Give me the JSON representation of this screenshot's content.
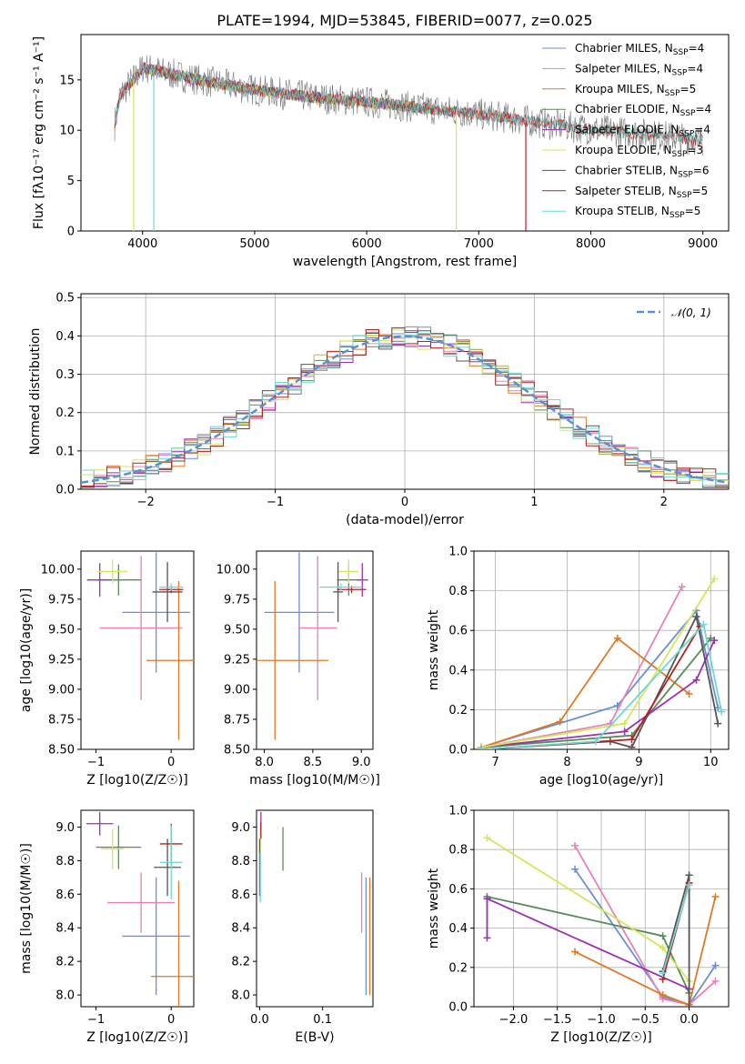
{
  "title": "PLATE=1994, MJD=53845, FIBERID=0077, z=0.025",
  "colors": {
    "Chabrier MILES": "#6a8ed8",
    "Salpeter MILES": "#e882b6",
    "Kroupa MILES": "#de7a26",
    "Chabrier ELODIE": "#5a8a5a",
    "Salpeter ELODIE": "#9a32b0",
    "Kroupa ELODIE": "#d2e85a",
    "Chabrier STELIB": "#555555",
    "Salpeter STELIB": "#b22222",
    "Kroupa STELIB": "#6cd8d0",
    "data": "#777777",
    "normal": "#5b8fd6"
  },
  "chart_data": [
    {
      "id": "spectrum",
      "type": "line",
      "xlabel": "wavelength [Angstrom, rest frame]",
      "ylabel": "Flux [fλ10⁻¹⁷ erg cm⁻² s⁻¹ A⁻¹]",
      "xlim": [
        3450,
        9230
      ],
      "ylim": [
        0,
        19.5
      ],
      "xticks": [
        4000,
        5000,
        6000,
        7000,
        8000,
        9000
      ],
      "yticks": [
        0,
        5,
        10,
        15
      ],
      "legend_position": "top-right",
      "legend": [
        {
          "name": "Chabrier MILES",
          "nssp": 4
        },
        {
          "name": "Salpeter MILES",
          "nssp": 4
        },
        {
          "name": "Kroupa MILES",
          "nssp": 5
        },
        {
          "name": "Chabrier ELODIE",
          "nssp": 4
        },
        {
          "name": "Salpeter ELODIE",
          "nssp": 4
        },
        {
          "name": "Kroupa ELODIE",
          "nssp": 3
        },
        {
          "name": "Chabrier STELIB",
          "nssp": 6
        },
        {
          "name": "Salpeter STELIB",
          "nssp": 5
        },
        {
          "name": "Kroupa STELIB",
          "nssp": 5
        }
      ],
      "continuum": {
        "x": [
          3750,
          3800,
          3900,
          4000,
          4100,
          4200,
          4500,
          5000,
          5500,
          6000,
          6500,
          7000,
          7400,
          7700,
          8000,
          8500,
          9000
        ],
        "y": [
          10.5,
          13.5,
          14.8,
          16.2,
          16.0,
          15.7,
          15.0,
          14.0,
          13.3,
          12.8,
          12.2,
          11.6,
          11.0,
          10.5,
          10.1,
          9.6,
          9.0
        ]
      },
      "model_ranges": [
        {
          "name": "Chabrier MILES",
          "x": [
            3750,
            7400
          ]
        },
        {
          "name": "Salpeter MILES",
          "x": [
            3750,
            7400
          ]
        },
        {
          "name": "Kroupa MILES",
          "x": [
            3750,
            7400
          ]
        },
        {
          "name": "Chabrier ELODIE",
          "x": [
            3900,
            6800
          ]
        },
        {
          "name": "Salpeter ELODIE",
          "x": [
            3900,
            6800
          ]
        },
        {
          "name": "Kroupa ELODIE",
          "x": [
            3900,
            6800
          ]
        },
        {
          "name": "Chabrier STELIB",
          "x": [
            3750,
            9000
          ]
        },
        {
          "name": "Salpeter STELIB",
          "x": [
            3750,
            9000
          ]
        },
        {
          "name": "Kroupa STELIB",
          "x": [
            3750,
            9000
          ]
        }
      ],
      "drops": [
        {
          "name": "Kroupa ELODIE",
          "x": 3920
        },
        {
          "name": "Kroupa STELIB",
          "x": 4100
        },
        {
          "name": "Kroupa ELODIE",
          "x": 6800
        },
        {
          "name": "Salpeter STELIB",
          "x": 7420
        }
      ]
    },
    {
      "id": "residuals",
      "type": "step",
      "xlabel": "(data-model)/error",
      "ylabel": "Normed distribution",
      "xlim": [
        -2.5,
        2.5
      ],
      "ylim": [
        0,
        0.51
      ],
      "xticks": [
        -2,
        -1,
        0,
        1,
        2
      ],
      "yticks": [
        0.0,
        0.1,
        0.2,
        0.3,
        0.4,
        0.5
      ],
      "grid": true,
      "legend_position": "top-right",
      "legend": "𝒩(0, 1)",
      "bin_width": 0.1,
      "bins_start": -2.5
    },
    {
      "id": "age-vs-Z",
      "type": "errorbar",
      "xlabel": "Z [log10(Z/Z☉)]",
      "ylabel": "age  [log10(age/yr)]",
      "xlim": [
        -1.2,
        0.3
      ],
      "ylim": [
        8.5,
        10.15
      ],
      "xticks": [
        -1,
        0
      ],
      "yticks": [
        8.5,
        8.75,
        9.0,
        9.25,
        9.5,
        9.75,
        10.0
      ],
      "points": [
        {
          "name": "Chabrier MILES",
          "x": -0.2,
          "xerr": 0.45,
          "y": 9.64,
          "yerr": 0.5
        },
        {
          "name": "Salpeter MILES",
          "x": -0.4,
          "xerr": 0.55,
          "y": 9.51,
          "yerr": 0.6
        },
        {
          "name": "Kroupa MILES",
          "x": 0.1,
          "xerr": 0.43,
          "y": 9.24,
          "yerr": 0.66
        },
        {
          "name": "Chabrier ELODIE",
          "x": -0.7,
          "xerr": 0.3,
          "y": 9.91,
          "yerr": 0.13
        },
        {
          "name": "Salpeter ELODIE",
          "x": -0.95,
          "xerr": 0.17,
          "y": 9.91,
          "yerr": 0.14
        },
        {
          "name": "Kroupa ELODIE",
          "x": -0.78,
          "xerr": 0.2,
          "y": 9.98,
          "yerr": 0.1
        },
        {
          "name": "Chabrier STELIB",
          "x": -0.05,
          "xerr": 0.2,
          "y": 9.81,
          "yerr": 0.25
        },
        {
          "name": "Salpeter STELIB",
          "x": 0.0,
          "xerr": 0.16,
          "y": 9.83,
          "yerr": 0.03
        },
        {
          "name": "Kroupa STELIB",
          "x": 0.0,
          "xerr": 0.16,
          "y": 9.85,
          "yerr": 0.03
        }
      ]
    },
    {
      "id": "age-vs-mass",
      "type": "errorbar",
      "xlabel": "mass [log10(M/M☉)]",
      "xlim": [
        7.92,
        9.12
      ],
      "ylim": [
        8.5,
        10.15
      ],
      "xticks": [
        8.0,
        8.5,
        9.0
      ],
      "yticks": [
        8.5,
        8.75,
        9.0,
        9.25,
        9.5,
        9.75,
        10.0
      ],
      "points": [
        {
          "name": "Chabrier MILES",
          "x": 8.36,
          "xerr": 0.36,
          "y": 9.64,
          "yerr": 0.5
        },
        {
          "name": "Salpeter MILES",
          "x": 8.55,
          "xerr": 0.2,
          "y": 9.51,
          "yerr": 0.6
        },
        {
          "name": "Kroupa MILES",
          "x": 8.11,
          "xerr": 0.55,
          "y": 9.24,
          "yerr": 0.66
        },
        {
          "name": "Chabrier ELODIE",
          "x": 8.87,
          "xerr": 0.12,
          "y": 9.91,
          "yerr": 0.13
        },
        {
          "name": "Salpeter ELODIE",
          "x": 9.01,
          "xerr": 0.06,
          "y": 9.91,
          "yerr": 0.14
        },
        {
          "name": "Kroupa ELODIE",
          "x": 8.87,
          "xerr": 0.1,
          "y": 9.98,
          "yerr": 0.1
        },
        {
          "name": "Chabrier STELIB",
          "x": 8.76,
          "xerr": 0.05,
          "y": 9.81,
          "yerr": 0.25
        },
        {
          "name": "Salpeter STELIB",
          "x": 8.9,
          "xerr": 0.15,
          "y": 9.83,
          "yerr": 0.03
        },
        {
          "name": "Kroupa STELIB",
          "x": 8.79,
          "xerr": 0.22,
          "y": 9.85,
          "yerr": 0.03
        }
      ]
    },
    {
      "id": "weight-vs-age",
      "type": "line",
      "xlabel": "age  [log10(age/yr)]",
      "ylabel": "mass weight",
      "xlim": [
        6.7,
        10.25
      ],
      "ylim": [
        0,
        1
      ],
      "xticks": [
        7,
        8,
        9,
        10
      ],
      "yticks": [
        0.0,
        0.2,
        0.4,
        0.6,
        0.8,
        1.0
      ],
      "grid": true,
      "series": [
        {
          "name": "Chabrier MILES",
          "x": [
            6.8,
            8.7,
            9.8,
            10.1
          ],
          "y": [
            0.01,
            0.22,
            0.7,
            0.21
          ]
        },
        {
          "name": "Salpeter MILES",
          "x": [
            6.8,
            8.6,
            9.6
          ],
          "y": [
            0.01,
            0.13,
            0.82
          ]
        },
        {
          "name": "Kroupa MILES",
          "x": [
            6.8,
            7.9,
            8.7,
            9.7
          ],
          "y": [
            0.01,
            0.14,
            0.56,
            0.28
          ]
        },
        {
          "name": "Chabrier ELODIE",
          "x": [
            6.8,
            8.9,
            10.0
          ],
          "y": [
            0.01,
            0.07,
            0.56
          ]
        },
        {
          "name": "Salpeter ELODIE",
          "x": [
            6.8,
            8.8,
            9.8,
            10.05
          ],
          "y": [
            0.01,
            0.09,
            0.35,
            0.55
          ]
        },
        {
          "name": "Kroupa ELODIE",
          "x": [
            6.8,
            8.8,
            10.05
          ],
          "y": [
            0.01,
            0.13,
            0.86
          ]
        },
        {
          "name": "Chabrier STELIB",
          "x": [
            6.8,
            8.6,
            8.9,
            9.8,
            10.1
          ],
          "y": [
            0.0,
            0.04,
            0.01,
            0.67,
            0.13
          ]
        },
        {
          "name": "Salpeter STELIB",
          "x": [
            6.8,
            8.9,
            9.85
          ],
          "y": [
            0.0,
            0.05,
            0.62
          ]
        },
        {
          "name": "Kroupa STELIB",
          "x": [
            6.8,
            8.4,
            9.9,
            10.15
          ],
          "y": [
            0.0,
            0.04,
            0.63,
            0.19
          ]
        }
      ]
    },
    {
      "id": "mass-vs-Z",
      "type": "errorbar",
      "xlabel": "Z [log10(Z/Z☉)]",
      "ylabel": "mass [log10(M/M☉)]",
      "xlim": [
        -1.2,
        0.3
      ],
      "ylim": [
        7.93,
        9.1
      ],
      "xticks": [
        -1,
        0
      ],
      "yticks": [
        8.0,
        8.2,
        8.4,
        8.6,
        8.8,
        9.0
      ],
      "points": [
        {
          "name": "Chabrier MILES",
          "x": -0.2,
          "xerr": 0.45,
          "y": 8.35,
          "yerr": 0.35
        },
        {
          "name": "Salpeter MILES",
          "x": -0.4,
          "xerr": 0.45,
          "y": 8.55,
          "yerr": 0.18
        },
        {
          "name": "Kroupa MILES",
          "x": 0.1,
          "xerr": 0.37,
          "y": 8.11,
          "yerr": 0.57
        },
        {
          "name": "Chabrier ELODIE",
          "x": -0.7,
          "xerr": 0.3,
          "y": 8.88,
          "yerr": 0.13
        },
        {
          "name": "Salpeter ELODIE",
          "x": -0.95,
          "xerr": 0.18,
          "y": 9.02,
          "yerr": 0.07
        },
        {
          "name": "Kroupa ELODIE",
          "x": -0.78,
          "xerr": 0.15,
          "y": 8.87,
          "yerr": 0.12
        },
        {
          "name": "Chabrier STELIB",
          "x": -0.05,
          "xerr": 0.18,
          "y": 8.76,
          "yerr": 0.17
        },
        {
          "name": "Salpeter STELIB",
          "x": 0.0,
          "xerr": 0.15,
          "y": 8.9,
          "yerr": 0.12
        },
        {
          "name": "Kroupa STELIB",
          "x": 0.0,
          "xerr": 0.15,
          "y": 8.79,
          "yerr": 0.22
        }
      ]
    },
    {
      "id": "mass-vs-EBV",
      "type": "errorbar",
      "xlabel": "E(B-V)",
      "xlim": [
        -0.005,
        0.18
      ],
      "ylim": [
        7.93,
        9.1
      ],
      "xticks": [
        0.0,
        0.1
      ],
      "yticks": [
        8.0,
        8.2,
        8.4,
        8.6,
        8.8,
        9.0
      ],
      "points": [
        {
          "name": "Chabrier MILES",
          "x": 0.169,
          "xerr": 0.0,
          "y": 8.35,
          "yerr": 0.35
        },
        {
          "name": "Salpeter MILES",
          "x": 0.162,
          "xerr": 0.0,
          "y": 8.55,
          "yerr": 0.18
        },
        {
          "name": "Kroupa MILES",
          "x": 0.175,
          "xerr": 0.0,
          "y": 8.35,
          "yerr": 0.35
        },
        {
          "name": "Chabrier ELODIE",
          "x": 0.037,
          "xerr": 0.0,
          "y": 8.87,
          "yerr": 0.13
        },
        {
          "name": "Salpeter ELODIE",
          "x": 0.002,
          "xerr": 0.0,
          "y": 9.02,
          "yerr": 0.07
        },
        {
          "name": "Kroupa ELODIE",
          "x": 0.001,
          "xerr": 0.0,
          "y": 8.87,
          "yerr": 0.12
        },
        {
          "name": "Chabrier STELIB",
          "x": 0.0,
          "xerr": 0.0,
          "y": 8.76,
          "yerr": 0.17
        },
        {
          "name": "Salpeter STELIB",
          "x": 0.002,
          "xerr": 0.0,
          "y": 8.98,
          "yerr": 0.05
        },
        {
          "name": "Kroupa STELIB",
          "x": 0.001,
          "xerr": 0.0,
          "y": 8.7,
          "yerr": 0.15
        }
      ]
    },
    {
      "id": "weight-vs-Z",
      "type": "line",
      "xlabel": "Z [log10(Z/Z☉)]",
      "ylabel": "mass weight",
      "xlim": [
        -2.45,
        0.45
      ],
      "ylim": [
        0,
        1
      ],
      "xticks": [
        -2.0,
        -1.5,
        -1.0,
        -0.5,
        0.0
      ],
      "yticks": [
        0.0,
        0.2,
        0.4,
        0.6,
        0.8,
        1.0
      ],
      "grid": true,
      "series": [
        {
          "name": "Chabrier MILES",
          "x": [
            -1.3,
            -0.3,
            0.0,
            0.3
          ],
          "y": [
            0.7,
            0.05,
            0.01,
            0.21
          ]
        },
        {
          "name": "Salpeter MILES",
          "x": [
            -1.3,
            -0.3,
            0.0,
            0.3
          ],
          "y": [
            0.82,
            0.04,
            0.01,
            0.13
          ]
        },
        {
          "name": "Kroupa MILES",
          "x": [
            -1.3,
            -0.3,
            0.0,
            0.3
          ],
          "y": [
            0.28,
            0.06,
            0.01,
            0.56
          ]
        },
        {
          "name": "Chabrier ELODIE",
          "x": [
            -2.3,
            -0.3,
            0.0
          ],
          "y": [
            0.56,
            0.36,
            0.07
          ]
        },
        {
          "name": "Salpeter ELODIE",
          "x": [
            -2.3,
            -2.3,
            0.0
          ],
          "y": [
            0.35,
            0.55,
            0.09
          ]
        },
        {
          "name": "Kroupa ELODIE",
          "x": [
            -2.3,
            -0.3,
            0.0
          ],
          "y": [
            0.86,
            0.3,
            0.13
          ]
        },
        {
          "name": "Chabrier STELIB",
          "x": [
            -0.3,
            0.0,
            0.0
          ],
          "y": [
            0.18,
            0.67,
            0.0
          ]
        },
        {
          "name": "Salpeter STELIB",
          "x": [
            -0.3,
            0.0
          ],
          "y": [
            0.14,
            0.63
          ]
        },
        {
          "name": "Kroupa STELIB",
          "x": [
            -0.3,
            0.0
          ],
          "y": [
            0.17,
            0.62
          ]
        }
      ]
    }
  ]
}
